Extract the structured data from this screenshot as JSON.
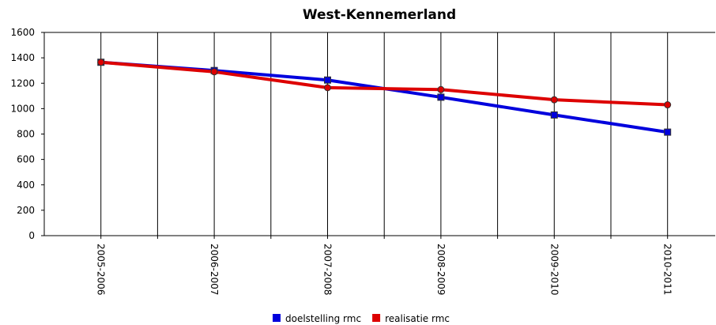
{
  "chart_data": {
    "type": "line",
    "title": "West-Kennemerland",
    "categories": [
      "2005-2006",
      "2006-2007",
      "2007-2008",
      "2008-2009",
      "2009-2010",
      "2010-2011"
    ],
    "series": [
      {
        "name": "doelstelling rmc",
        "color": "#0000dd",
        "marker": "square",
        "values": [
          1365,
          1300,
          1225,
          1090,
          950,
          815
        ]
      },
      {
        "name": "realisatie rmc",
        "color": "#dd0000",
        "marker": "circle",
        "values": [
          1365,
          1290,
          1165,
          1150,
          1070,
          1030
        ]
      }
    ],
    "ylim": [
      0,
      1600
    ],
    "yticks": [
      0,
      200,
      400,
      600,
      800,
      1000,
      1200,
      1400,
      1600
    ],
    "grid": true,
    "legend": "bottom"
  }
}
